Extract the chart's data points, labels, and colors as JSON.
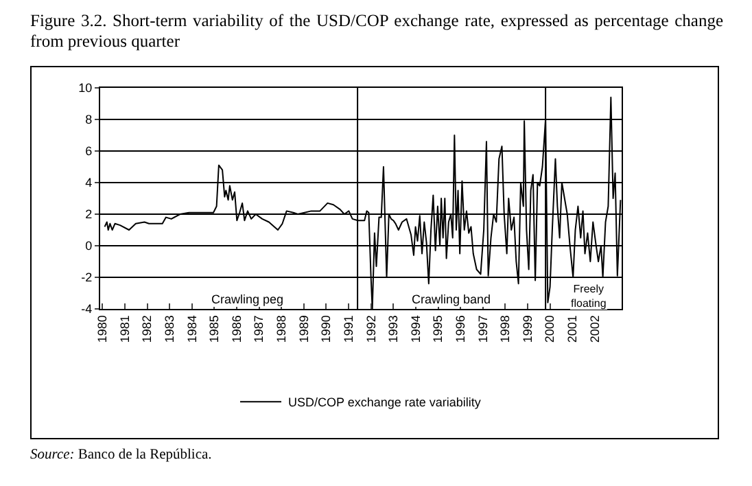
{
  "chart_data": {
    "type": "line",
    "title": "Figure 3.2. Short-term variability of the USD/COP exchange rate, expressed as percentage change from previous quarter",
    "x": [
      1980.1,
      1980.2,
      1980.26,
      1980.34,
      1980.44,
      1980.56,
      1980.79,
      1981.19,
      1981.49,
      1981.88,
      1982.08,
      1982.68,
      1982.84,
      1983.08,
      1983.47,
      1983.87,
      1984.46,
      1984.96,
      1985.1,
      1985.2,
      1985.36,
      1985.46,
      1985.52,
      1985.62,
      1985.69,
      1985.81,
      1985.91,
      1986.01,
      1986.13,
      1986.25,
      1986.35,
      1986.49,
      1986.65,
      1986.85,
      1987.14,
      1987.44,
      1987.84,
      1988.04,
      1988.23,
      1988.53,
      1988.73,
      1989.03,
      1989.33,
      1989.72,
      1990.06,
      1990.32,
      1990.62,
      1990.81,
      1991.01,
      1991.17,
      1991.41,
      1991.71,
      1991.81,
      1991.9,
      1992.0,
      1992.06,
      1992.16,
      1992.24,
      1992.36,
      1992.46,
      1992.56,
      1992.7,
      1992.8,
      1992.9,
      1993.0,
      1993.1,
      1993.23,
      1993.39,
      1993.59,
      1993.79,
      1993.91,
      1993.99,
      1994.08,
      1994.18,
      1994.28,
      1994.38,
      1994.48,
      1994.58,
      1994.68,
      1994.78,
      1994.88,
      1994.98,
      1995.08,
      1995.14,
      1995.22,
      1995.3,
      1995.37,
      1995.47,
      1995.57,
      1995.65,
      1995.73,
      1995.81,
      1995.89,
      1995.97,
      1996.07,
      1996.17,
      1996.27,
      1996.37,
      1996.47,
      1996.57,
      1996.72,
      1996.9,
      1997.04,
      1997.16,
      1997.24,
      1997.36,
      1997.48,
      1997.6,
      1997.72,
      1997.85,
      1997.95,
      1998.07,
      1998.15,
      1998.27,
      1998.39,
      1998.49,
      1998.59,
      1998.69,
      1998.81,
      1998.85,
      1998.95,
      1999.05,
      1999.14,
      1999.24,
      1999.34,
      1999.44,
      1999.54,
      1999.66,
      1999.8,
      1999.9,
      2000.0,
      2000.1,
      2000.24,
      2000.33,
      2000.43,
      2000.53,
      2000.65,
      2000.77,
      2000.89,
      2001.03,
      2001.13,
      2001.25,
      2001.37,
      2001.47,
      2001.56,
      2001.68,
      2001.8,
      2001.92,
      2002.04,
      2002.16,
      2002.28,
      2002.36,
      2002.48,
      2002.6,
      2002.72,
      2002.82,
      2002.91,
      2003.01,
      2003.15
    ],
    "series": [
      {
        "name": "USD/COP exchange rate variability",
        "color": "#000000",
        "values": [
          1.2,
          1.5,
          1.0,
          1.4,
          1.0,
          1.4,
          1.3,
          1.0,
          1.4,
          1.5,
          1.4,
          1.4,
          1.8,
          1.7,
          2.0,
          2.1,
          2.1,
          2.1,
          2.5,
          5.1,
          4.8,
          3.1,
          3.5,
          2.9,
          3.8,
          2.9,
          3.4,
          1.6,
          2.1,
          2.7,
          1.6,
          2.2,
          1.7,
          2.0,
          1.7,
          1.5,
          1.0,
          1.4,
          2.2,
          2.1,
          2.0,
          2.1,
          2.2,
          2.2,
          2.7,
          2.6,
          2.3,
          2.0,
          2.2,
          1.7,
          1.6,
          1.6,
          2.2,
          2.1,
          -2.0,
          -4.0,
          0.8,
          -1.3,
          1.8,
          1.8,
          5.0,
          -2.0,
          2.0,
          1.7,
          1.6,
          1.4,
          1.0,
          1.5,
          1.7,
          0.7,
          -0.6,
          1.2,
          0.3,
          1.9,
          -0.5,
          1.5,
          0.2,
          -2.4,
          1.0,
          3.2,
          -0.3,
          2.5,
          0.0,
          3.0,
          0.5,
          3.0,
          -0.8,
          1.5,
          2.0,
          0.5,
          7.0,
          1.0,
          3.5,
          -0.5,
          4.1,
          1.0,
          2.2,
          0.8,
          1.2,
          -0.5,
          -1.5,
          -1.8,
          1.0,
          6.6,
          -1.9,
          0.5,
          2.0,
          1.5,
          5.5,
          6.3,
          2.0,
          -0.5,
          3.0,
          1.0,
          1.8,
          -1.0,
          -2.4,
          4.0,
          2.5,
          7.9,
          1.0,
          -1.5,
          3.5,
          4.5,
          -2.2,
          4.0,
          3.8,
          5.0,
          8.0,
          -3.6,
          -2.6,
          1.0,
          5.5,
          2.5,
          0.5,
          4.0,
          3.0,
          2.0,
          0.0,
          -2.0,
          1.0,
          2.5,
          0.5,
          2.2,
          -0.5,
          0.8,
          -1.0,
          1.5,
          0.2,
          -1.0,
          0.0,
          -2.0,
          1.5,
          2.5,
          9.4,
          3.0,
          4.6,
          -1.9,
          2.9
        ]
      }
    ],
    "xlim": [
      1979.9,
      2003.2
    ],
    "xticks": [
      1980,
      1981,
      1982,
      1983,
      1984,
      1985,
      1986,
      1987,
      1988,
      1989,
      1990,
      1991,
      1992,
      1993,
      1994,
      1995,
      1996,
      1997,
      1998,
      1999,
      2000,
      2001,
      2002
    ],
    "ylim": [
      -4,
      10
    ],
    "yticks": [
      -4,
      -2,
      0,
      2,
      4,
      6,
      8,
      10
    ],
    "grid": "y",
    "legend": "bottom",
    "line_style": "solid",
    "marker": "none",
    "ref_lines": [
      {
        "axis": "x",
        "value": 1991.4
      },
      {
        "axis": "x",
        "value": 1999.8
      }
    ],
    "annotations": [
      "Crawling peg",
      "Crawling band",
      "Freely floating",
      "Source: Banco de la República."
    ]
  }
}
